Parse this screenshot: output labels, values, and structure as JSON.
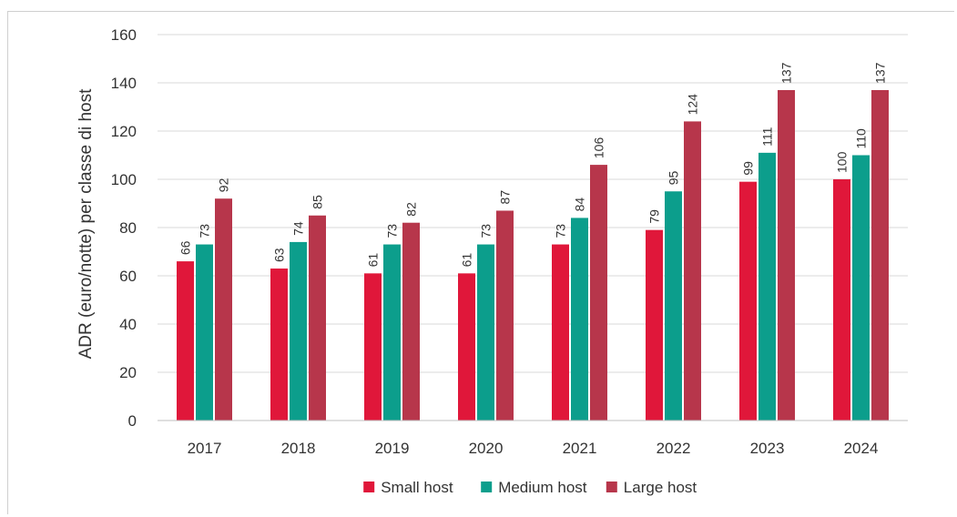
{
  "chart_data": {
    "type": "bar",
    "ylabel": "ADR (euro/notte) per classe di host",
    "xlabel": "",
    "title": "",
    "ylim": [
      0,
      160
    ],
    "yticks": [
      "0",
      "20",
      "40",
      "60",
      "80",
      "100",
      "120",
      "140",
      "160"
    ],
    "grid": true,
    "legend_position": "bottom",
    "categories": [
      "2017",
      "2018",
      "2019",
      "2020",
      "2021",
      "2022",
      "2023",
      "2024"
    ],
    "series": [
      {
        "name": "Small host",
        "color": "#e0173a",
        "values": [
          66,
          63,
          61,
          61,
          73,
          79,
          99,
          100
        ]
      },
      {
        "name": "Medium host",
        "color": "#0c9e8c",
        "values": [
          73,
          74,
          73,
          73,
          84,
          95,
          111,
          110
        ]
      },
      {
        "name": "Large host",
        "color": "#b7364b",
        "values": [
          92,
          85,
          82,
          87,
          106,
          124,
          137,
          137
        ]
      }
    ]
  }
}
